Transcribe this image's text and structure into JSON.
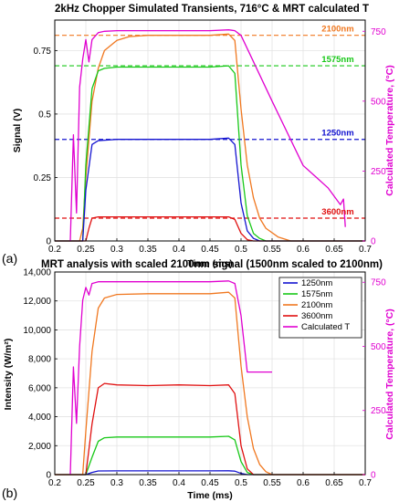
{
  "chart_data": [
    {
      "type": "line",
      "panel_label": "(a)",
      "title": "2kHz Chopper Simulated Transients, 716°C & MRT calculated T",
      "xlabel": "Time (ms)",
      "ylabel": "Signal (V)",
      "y2label": "Calculated Temperature, (°C)",
      "xlim": [
        0.2,
        0.7
      ],
      "ylim": [
        0,
        0.87
      ],
      "y2lim": [
        0,
        790
      ],
      "xticks": [
        "0.2",
        "0.25",
        "0.3",
        "0.35",
        "0.4",
        "0.45",
        "0.5",
        "0.55",
        "0.6",
        "0.65",
        "0.7"
      ],
      "yticks": [
        "0",
        "0.25",
        "0.5",
        "0.75"
      ],
      "y2ticks": [
        "0",
        "250",
        "500",
        "750"
      ],
      "grid": true,
      "series": [
        {
          "name": "2100nm",
          "color": "#f07820",
          "axis": "left",
          "x": [
            0.2,
            0.24,
            0.245,
            0.25,
            0.26,
            0.27,
            0.28,
            0.3,
            0.32,
            0.35,
            0.4,
            0.45,
            0.48,
            0.49,
            0.5,
            0.51,
            0.52,
            0.53,
            0.54,
            0.56,
            0.58,
            0.6,
            0.7
          ],
          "y": [
            0,
            0,
            0.05,
            0.25,
            0.55,
            0.68,
            0.75,
            0.79,
            0.805,
            0.81,
            0.81,
            0.81,
            0.815,
            0.79,
            0.52,
            0.3,
            0.17,
            0.09,
            0.05,
            0.015,
            0,
            0,
            0
          ]
        },
        {
          "name": "1575nm",
          "color": "#18c818",
          "axis": "left",
          "x": [
            0.2,
            0.245,
            0.25,
            0.26,
            0.27,
            0.28,
            0.3,
            0.35,
            0.45,
            0.48,
            0.49,
            0.5,
            0.51,
            0.52,
            0.53,
            0.54,
            0.56,
            0.7
          ],
          "y": [
            0,
            0,
            0.3,
            0.6,
            0.67,
            0.68,
            0.685,
            0.685,
            0.685,
            0.69,
            0.66,
            0.3,
            0.1,
            0.03,
            0.01,
            0,
            0,
            0
          ]
        },
        {
          "name": "1250nm",
          "color": "#1414d0",
          "axis": "left",
          "x": [
            0.2,
            0.245,
            0.25,
            0.26,
            0.27,
            0.3,
            0.45,
            0.48,
            0.49,
            0.5,
            0.51,
            0.52,
            0.53,
            0.54,
            0.7
          ],
          "y": [
            0,
            0,
            0.2,
            0.38,
            0.395,
            0.4,
            0.4,
            0.405,
            0.38,
            0.15,
            0.04,
            0.01,
            0,
            0,
            0
          ]
        },
        {
          "name": "3600nm",
          "color": "#e01010",
          "axis": "left",
          "x": [
            0.2,
            0.25,
            0.255,
            0.26,
            0.27,
            0.3,
            0.45,
            0.48,
            0.49,
            0.5,
            0.51,
            0.52,
            0.53,
            0.7
          ],
          "y": [
            0,
            0,
            0.05,
            0.09,
            0.095,
            0.095,
            0.095,
            0.095,
            0.085,
            0.03,
            0.005,
            0,
            0,
            0
          ]
        },
        {
          "name": "Calculated T",
          "color": "#e000d0",
          "axis": "right",
          "x": [
            0.225,
            0.23,
            0.235,
            0.24,
            0.245,
            0.25,
            0.255,
            0.26,
            0.27,
            0.28,
            0.3,
            0.4,
            0.45,
            0.48,
            0.49,
            0.5,
            0.55,
            0.6,
            0.62,
            0.64,
            0.65,
            0.66,
            0.665,
            0.668
          ],
          "y": [
            0,
            380,
            100,
            550,
            650,
            720,
            640,
            720,
            745,
            750,
            752,
            752,
            752,
            755,
            752,
            735,
            500,
            270,
            230,
            190,
            160,
            130,
            150,
            50
          ]
        }
      ],
      "reference_lines": [
        {
          "label": "2100nm",
          "y": 0.81,
          "color": "#f07820"
        },
        {
          "label": "1575nm",
          "y": 0.69,
          "color": "#18c818"
        },
        {
          "label": "1250nm",
          "y": 0.4,
          "color": "#1414d0"
        },
        {
          "label": "3600nm",
          "y": 0.09,
          "color": "#e01010"
        }
      ]
    },
    {
      "type": "line",
      "panel_label": "(b)",
      "title": "MRT analysis with scaled 2100nm signal (1500nm scaled to 2100nm)",
      "xlabel": "Time (ms)",
      "ylabel": "Intensity (W/m²)",
      "y2label": "Calculated Temperature, (°C)",
      "xlim": [
        0.2,
        0.7
      ],
      "ylim": [
        0,
        14000
      ],
      "y2lim": [
        0,
        790
      ],
      "xticks": [
        "0.2",
        "0.25",
        "0.3",
        "0.35",
        "0.4",
        "0.45",
        "0.5",
        "0.55",
        "0.6",
        "0.65",
        "0.7"
      ],
      "yticks": [
        "0",
        "2,000",
        "4,000",
        "6,000",
        "8,000",
        "10,000",
        "12,000",
        "14,000"
      ],
      "y2ticks": [
        "0",
        "250",
        "500",
        "750"
      ],
      "grid": true,
      "legend": [
        "1250nm",
        "1575nm",
        "2100nm",
        "3600nm",
        "Calculated T"
      ],
      "legend_position": "top-right",
      "series": [
        {
          "name": "1250nm",
          "color": "#1414d0",
          "axis": "left",
          "x": [
            0.2,
            0.25,
            0.26,
            0.27,
            0.3,
            0.45,
            0.48,
            0.49,
            0.5,
            0.51,
            0.7
          ],
          "y": [
            0,
            0,
            150,
            250,
            260,
            260,
            265,
            240,
            80,
            0,
            0
          ]
        },
        {
          "name": "1575nm",
          "color": "#18c818",
          "axis": "left",
          "x": [
            0.2,
            0.25,
            0.26,
            0.27,
            0.28,
            0.3,
            0.45,
            0.48,
            0.49,
            0.5,
            0.51,
            0.52,
            0.7
          ],
          "y": [
            0,
            0,
            1200,
            2300,
            2550,
            2600,
            2600,
            2650,
            2400,
            900,
            150,
            0,
            0
          ]
        },
        {
          "name": "2100nm",
          "color": "#f07820",
          "axis": "left",
          "x": [
            0.2,
            0.245,
            0.25,
            0.26,
            0.27,
            0.28,
            0.3,
            0.35,
            0.45,
            0.48,
            0.49,
            0.5,
            0.51,
            0.52,
            0.53,
            0.54,
            0.55,
            0.7
          ],
          "y": [
            0,
            0,
            3000,
            8500,
            11500,
            12200,
            12450,
            12500,
            12500,
            12600,
            12200,
            7500,
            4000,
            1800,
            700,
            200,
            0,
            0
          ]
        },
        {
          "name": "3600nm",
          "color": "#e01010",
          "axis": "left",
          "x": [
            0.2,
            0.25,
            0.26,
            0.27,
            0.28,
            0.3,
            0.35,
            0.4,
            0.45,
            0.48,
            0.49,
            0.5,
            0.51,
            0.52,
            0.7
          ],
          "y": [
            0,
            0,
            3500,
            6000,
            6300,
            6200,
            6150,
            6200,
            6150,
            6200,
            5600,
            2000,
            400,
            0,
            0
          ]
        },
        {
          "name": "Calculated T",
          "color": "#e000d0",
          "axis": "right",
          "x": [
            0.225,
            0.23,
            0.235,
            0.24,
            0.245,
            0.25,
            0.255,
            0.26,
            0.27,
            0.3,
            0.45,
            0.48,
            0.49,
            0.5,
            0.51,
            0.52,
            0.55
          ],
          "y": [
            0,
            420,
            200,
            500,
            680,
            730,
            700,
            745,
            752,
            752,
            752,
            755,
            745,
            620,
            400,
            400,
            400
          ]
        }
      ]
    }
  ]
}
